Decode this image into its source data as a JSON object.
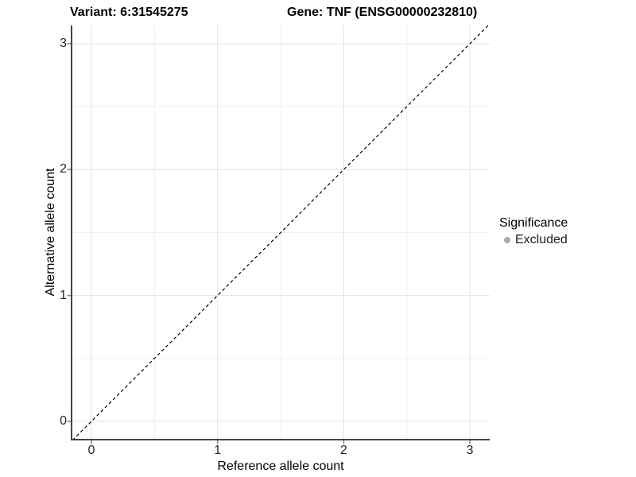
{
  "chart_data": {
    "type": "scatter",
    "title_left": "Variant: 6:31545275",
    "title_right": "Gene: TNF (ENSG00000232810)",
    "xlabel": "Reference allele count",
    "ylabel": "Alternative allele count",
    "xlim": [
      -0.15,
      3.15
    ],
    "ylim": [
      -0.15,
      3.15
    ],
    "x_ticks": [
      0,
      1,
      2,
      3
    ],
    "y_ticks": [
      0,
      1,
      2,
      3
    ],
    "x_minor_ticks": [
      0.5,
      1.5,
      2.5
    ],
    "y_minor_ticks": [
      0.5,
      1.5,
      2.5
    ],
    "points": [],
    "identity_line": {
      "style": "dashed",
      "color": "#000000",
      "from": [
        -0.15,
        -0.15
      ],
      "to": [
        3.15,
        3.15
      ]
    },
    "grid": {
      "major": true,
      "minor": true
    },
    "legend": {
      "title": "Significance",
      "position": "right",
      "entries": [
        {
          "label": "Excluded",
          "marker": "circle",
          "color": "#aaaaaa"
        }
      ]
    }
  },
  "style": {
    "background": "#ffffff",
    "grid_major_color": "#e3e3e3",
    "grid_minor_color": "#efefef",
    "axis_line_color": "#454545",
    "tick_mark_color": "#808080",
    "tick_label_color": "#262626",
    "text_color": "#000000"
  }
}
